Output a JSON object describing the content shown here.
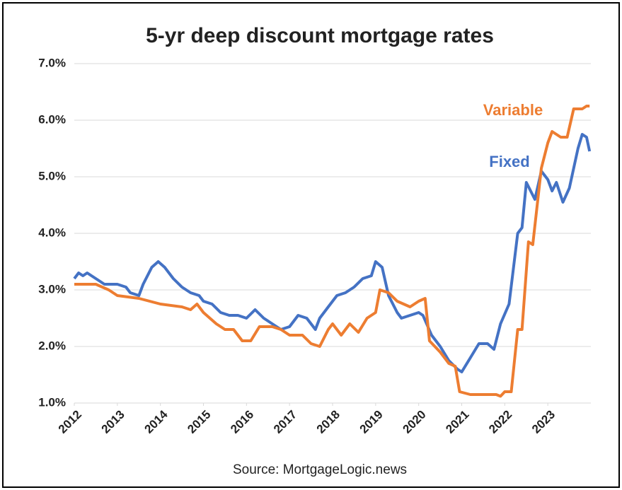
{
  "chart_data": {
    "type": "line",
    "title": "5-yr deep discount mortgage rates",
    "source": "Source: MortgageLogic.news",
    "xlim": [
      2012,
      2024
    ],
    "xticks": [
      2012,
      2013,
      2014,
      2015,
      2016,
      2017,
      2018,
      2019,
      2020,
      2021,
      2022,
      2023
    ],
    "ylim": [
      1,
      7
    ],
    "yticks": [
      {
        "value": 1,
        "label": "1.0%"
      },
      {
        "value": 2,
        "label": "2.0%"
      },
      {
        "value": 3,
        "label": "3.0%"
      },
      {
        "value": 4,
        "label": "4.0%"
      },
      {
        "value": 5,
        "label": "5.0%"
      },
      {
        "value": 6,
        "label": "6.0%"
      },
      {
        "value": 7,
        "label": "7.0%"
      }
    ],
    "grid": true,
    "series": [
      {
        "name": "Fixed",
        "color": "#4472c4",
        "x": [
          2012.0,
          2012.1,
          2012.2,
          2012.3,
          2012.5,
          2012.7,
          2013.0,
          2013.2,
          2013.3,
          2013.5,
          2013.6,
          2013.8,
          2013.95,
          2014.1,
          2014.3,
          2014.5,
          2014.7,
          2014.9,
          2015.0,
          2015.2,
          2015.4,
          2015.6,
          2015.8,
          2016.0,
          2016.2,
          2016.4,
          2016.6,
          2016.8,
          2017.0,
          2017.2,
          2017.4,
          2017.6,
          2017.7,
          2017.9,
          2018.1,
          2018.3,
          2018.5,
          2018.7,
          2018.9,
          2019.0,
          2019.15,
          2019.3,
          2019.5,
          2019.6,
          2019.8,
          2020.0,
          2020.1,
          2020.3,
          2020.5,
          2020.7,
          2020.9,
          2021.0,
          2021.2,
          2021.4,
          2021.6,
          2021.75,
          2021.9,
          2022.1,
          2022.3,
          2022.4,
          2022.5,
          2022.7,
          2022.85,
          2023.0,
          2023.1,
          2023.2,
          2023.35,
          2023.5,
          2023.7,
          2023.8,
          2023.9,
          2023.97
        ],
        "values": [
          3.2,
          3.3,
          3.25,
          3.3,
          3.2,
          3.1,
          3.1,
          3.05,
          2.95,
          2.9,
          3.1,
          3.4,
          3.5,
          3.4,
          3.2,
          3.05,
          2.95,
          2.9,
          2.8,
          2.75,
          2.6,
          2.55,
          2.55,
          2.5,
          2.65,
          2.5,
          2.4,
          2.3,
          2.35,
          2.55,
          2.5,
          2.3,
          2.5,
          2.7,
          2.9,
          2.95,
          3.05,
          3.2,
          3.25,
          3.5,
          3.4,
          2.9,
          2.6,
          2.5,
          2.55,
          2.6,
          2.55,
          2.2,
          2.0,
          1.75,
          1.6,
          1.55,
          1.8,
          2.05,
          2.05,
          1.95,
          2.4,
          2.75,
          4.0,
          4.1,
          4.9,
          4.6,
          5.1,
          4.95,
          4.75,
          4.9,
          4.55,
          4.8,
          5.5,
          5.75,
          5.7,
          5.45
        ]
      },
      {
        "name": "Variable",
        "color": "#ed7d31",
        "x": [
          2012.0,
          2012.5,
          2012.8,
          2013.0,
          2013.5,
          2014.0,
          2014.5,
          2014.7,
          2014.85,
          2015.0,
          2015.3,
          2015.5,
          2015.7,
          2015.9,
          2016.1,
          2016.3,
          2016.6,
          2016.8,
          2017.0,
          2017.3,
          2017.5,
          2017.7,
          2017.9,
          2018.0,
          2018.2,
          2018.4,
          2018.6,
          2018.8,
          2019.0,
          2019.1,
          2019.3,
          2019.5,
          2019.8,
          2020.0,
          2020.15,
          2020.25,
          2020.5,
          2020.7,
          2020.85,
          2020.95,
          2021.2,
          2021.5,
          2021.8,
          2021.9,
          2022.0,
          2022.15,
          2022.3,
          2022.4,
          2022.55,
          2022.65,
          2022.85,
          2023.0,
          2023.1,
          2023.3,
          2023.45,
          2023.6,
          2023.8,
          2023.9,
          2023.97
        ],
        "values": [
          3.1,
          3.1,
          3.0,
          2.9,
          2.85,
          2.75,
          2.7,
          2.65,
          2.75,
          2.6,
          2.4,
          2.3,
          2.3,
          2.1,
          2.1,
          2.35,
          2.35,
          2.3,
          2.2,
          2.2,
          2.05,
          2.0,
          2.3,
          2.4,
          2.2,
          2.4,
          2.25,
          2.5,
          2.6,
          3.0,
          2.95,
          2.8,
          2.7,
          2.8,
          2.85,
          2.1,
          1.9,
          1.7,
          1.65,
          1.2,
          1.15,
          1.15,
          1.15,
          1.12,
          1.2,
          1.2,
          2.3,
          2.3,
          3.85,
          3.8,
          5.15,
          5.6,
          5.8,
          5.7,
          5.7,
          6.2,
          6.2,
          6.25,
          6.25
        ]
      }
    ]
  }
}
